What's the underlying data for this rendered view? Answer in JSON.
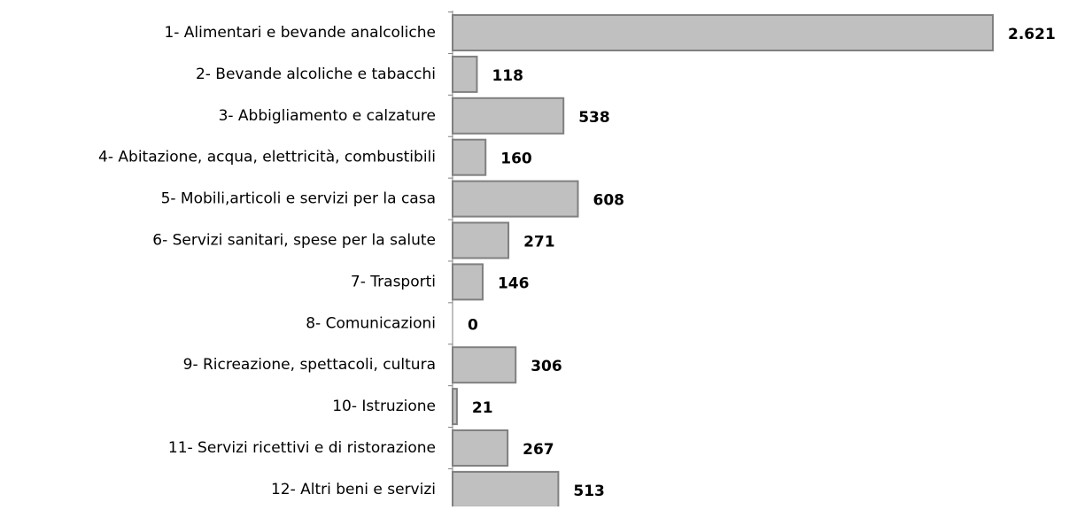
{
  "chart_data": {
    "type": "hbar",
    "categories": [
      "1- Alimentari e bevande analcoliche",
      "2- Bevande alcoliche e tabacchi",
      "3- Abbigliamento e calzature",
      "4- Abitazione, acqua, elettricità, combustibili",
      "5- Mobili,articoli e servizi per la casa",
      "6- Servizi sanitari, spese per la salute",
      "7- Trasporti",
      "8- Comunicazioni",
      "9- Ricreazione, spettacoli, cultura",
      "10-  Istruzione",
      "11- Servizi ricettivi e di ristorazione",
      "12- Altri beni e servizi"
    ],
    "values": [
      2621,
      118,
      538,
      160,
      608,
      271,
      146,
      0,
      306,
      21,
      267,
      513
    ],
    "value_labels": [
      "2.621",
      "118",
      "538",
      "160",
      "608",
      "271",
      "146",
      "0",
      "306",
      "21",
      "267",
      "513"
    ],
    "color": "#c0c0c0"
  }
}
